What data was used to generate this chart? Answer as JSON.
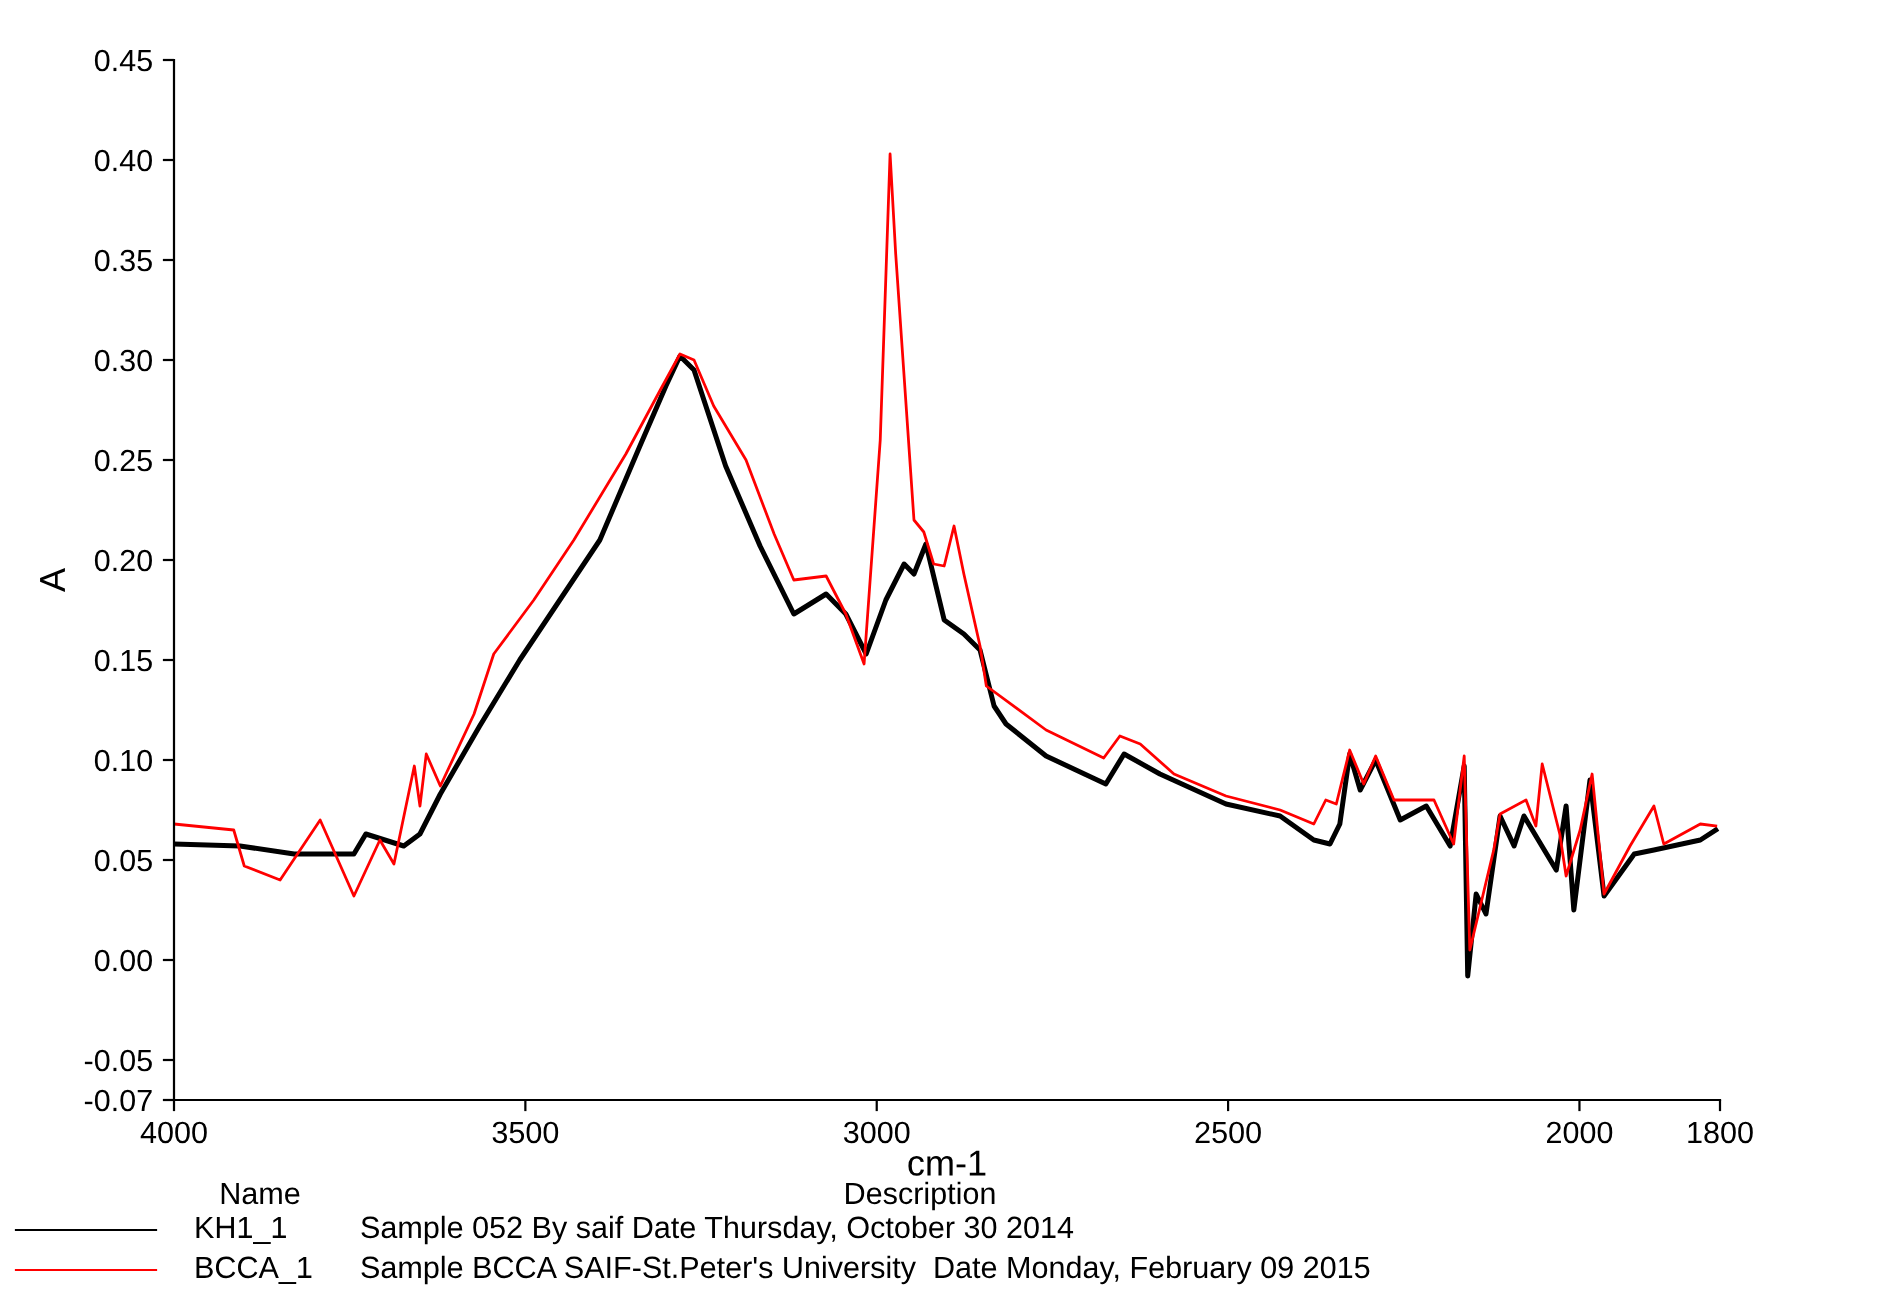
{
  "chart_data": {
    "type": "line",
    "xlabel": "cm-1",
    "ylabel": "A",
    "xlim": [
      4000,
      1800
    ],
    "ylim": [
      -0.07,
      0.45
    ],
    "xticks": [
      4000,
      3500,
      3000,
      2500,
      2000,
      1800
    ],
    "yticks": [
      -0.07,
      -0.05,
      {
        "value": 0,
        "label": "0.00"
      },
      {
        "value": 0.05,
        "label": "0.05"
      },
      {
        "value": 0.1,
        "label": "0.10"
      },
      {
        "value": 0.15,
        "label": "0.15"
      },
      {
        "value": 0.2,
        "label": "0.20"
      },
      {
        "value": 0.25,
        "label": "0.25"
      },
      {
        "value": 0.3,
        "label": "0.30"
      },
      {
        "value": 0.35,
        "label": "0.35"
      },
      {
        "value": 0.4,
        "label": "0.40"
      },
      {
        "value": 0.45,
        "label": "0.45"
      }
    ],
    "grid": false,
    "legend": "bottom",
    "marker": "none",
    "line_style": "solid",
    "annotations": [
      "Name",
      "Description",
      "Sample 052 By saif Date Thursday, October 30 2014",
      "Sample BCCA SAIF-St.Peter's University  Date Monday, February 09 2015"
    ],
    "series": [
      {
        "name": "KH1_1",
        "color": "#000000",
        "x": [
          4000,
          3906,
          3829,
          3744,
          3727,
          3673,
          3650,
          3621,
          3565,
          3508,
          3451,
          3394,
          3337,
          3300,
          3280,
          3260,
          3215,
          3166,
          3118,
          3072,
          3044,
          3015,
          2987,
          2961,
          2947,
          2930,
          2904,
          2876,
          2853,
          2833,
          2816,
          2759,
          2674,
          2648,
          2597,
          2503,
          2426,
          2378,
          2355,
          2341,
          2327,
          2312,
          2290,
          2255,
          2218,
          2184,
          2164,
          2159,
          2147,
          2133,
          2113,
          2093,
          2079,
          2033,
          2019,
          2008,
          1985,
          1965,
          1922,
          1894,
          1828,
          1806
        ],
        "values": [
          0.058,
          0.057,
          0.053,
          0.053,
          0.063,
          0.057,
          0.063,
          0.083,
          0.117,
          0.15,
          0.18,
          0.21,
          0.257,
          0.287,
          0.302,
          0.295,
          0.247,
          0.207,
          0.173,
          0.183,
          0.173,
          0.153,
          0.18,
          0.198,
          0.193,
          0.208,
          0.17,
          0.163,
          0.155,
          0.127,
          0.118,
          0.102,
          0.088,
          0.103,
          0.093,
          0.078,
          0.072,
          0.06,
          0.058,
          0.068,
          0.103,
          0.085,
          0.1,
          0.07,
          0.077,
          0.057,
          0.097,
          -0.008,
          0.033,
          0.023,
          0.072,
          0.057,
          0.072,
          0.045,
          0.077,
          0.025,
          0.09,
          0.032,
          0.053,
          0.055,
          0.06,
          0.065
        ]
      },
      {
        "name": "BCCA_1",
        "color": "#ff0000",
        "x": [
          4000,
          3915,
          3900,
          3849,
          3792,
          3744,
          3707,
          3687,
          3658,
          3650,
          3641,
          3621,
          3573,
          3545,
          3488,
          3431,
          3357,
          3308,
          3280,
          3260,
          3232,
          3186,
          3146,
          3118,
          3072,
          3044,
          3018,
          2995,
          2981,
          2973,
          2947,
          2933,
          2919,
          2904,
          2890,
          2876,
          2853,
          2844,
          2759,
          2677,
          2654,
          2625,
          2577,
          2503,
          2426,
          2378,
          2361,
          2346,
          2327,
          2307,
          2290,
          2264,
          2207,
          2179,
          2164,
          2156,
          2122,
          2113,
          2076,
          2062,
          2053,
          2028,
          2019,
          1999,
          1982,
          1965,
          1928,
          1894,
          1880,
          1828,
          1806
        ],
        "values": [
          0.068,
          0.065,
          0.047,
          0.04,
          0.07,
          0.032,
          0.06,
          0.048,
          0.097,
          0.077,
          0.103,
          0.087,
          0.123,
          0.153,
          0.18,
          0.21,
          0.253,
          0.285,
          0.303,
          0.3,
          0.277,
          0.25,
          0.213,
          0.19,
          0.192,
          0.173,
          0.148,
          0.26,
          0.403,
          0.353,
          0.22,
          0.214,
          0.198,
          0.197,
          0.217,
          0.193,
          0.157,
          0.137,
          0.115,
          0.101,
          0.112,
          0.108,
          0.093,
          0.082,
          0.075,
          0.068,
          0.08,
          0.078,
          0.105,
          0.088,
          0.102,
          0.08,
          0.08,
          0.058,
          0.102,
          0.005,
          0.055,
          0.073,
          0.08,
          0.067,
          0.098,
          0.063,
          0.042,
          0.065,
          0.093,
          0.033,
          0.057,
          0.077,
          0.058,
          0.068,
          0.067
        ]
      }
    ]
  }
}
